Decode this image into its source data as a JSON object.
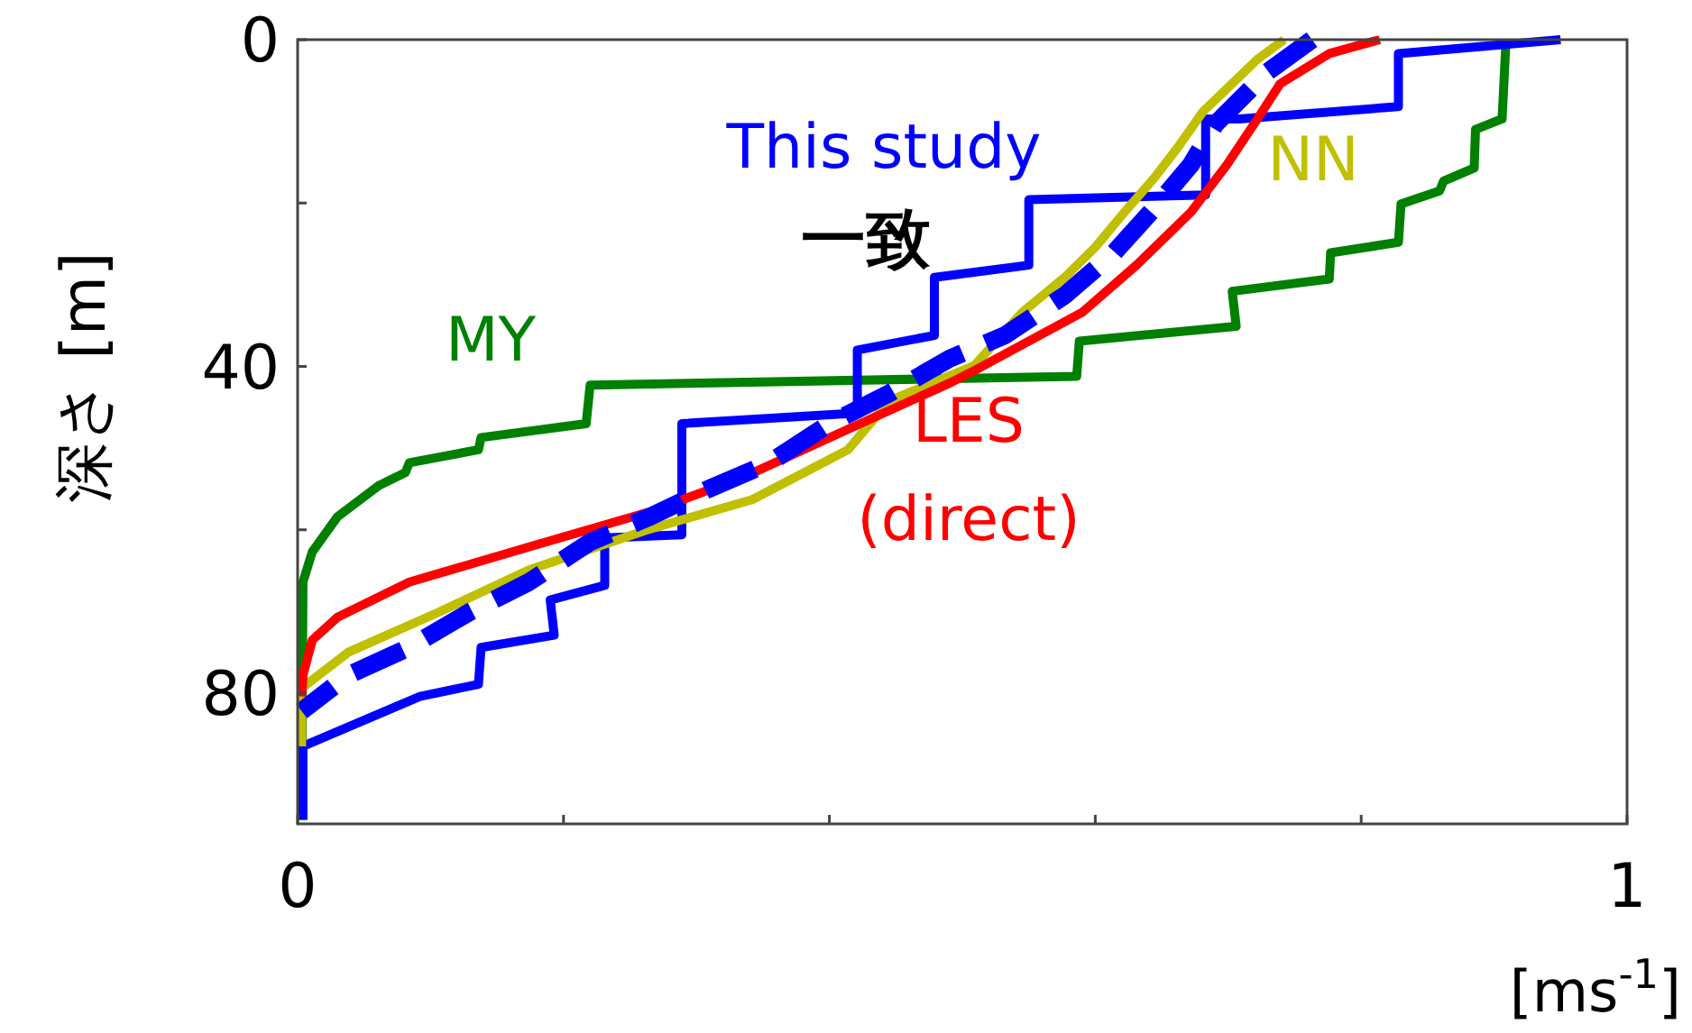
{
  "chart_data": {
    "type": "line",
    "xlabel": "[ms$^{-1}$]",
    "ylabel": "深さ [m]",
    "xlim": [
      0,
      1
    ],
    "ylim": [
      96,
      0
    ],
    "xticks": [
      0,
      {
        "value": 0.2,
        "label": null
      },
      {
        "value": 0.4,
        "label": null
      },
      {
        "value": 0.6,
        "label": null
      },
      {
        "value": 0.8,
        "label": null
      },
      1
    ],
    "yticks": [
      0,
      {
        "value": 20,
        "label": null
      },
      40,
      {
        "value": 60,
        "label": null
      },
      80
    ],
    "grid": false,
    "marker": "none",
    "annotations": [
      "一致"
    ],
    "series": [
      {
        "name": "MY",
        "color": "#008000",
        "line_style": "solid",
        "x": [
          0.909,
          0.906,
          0.886,
          0.885,
          0.862,
          0.859,
          0.83,
          0.828,
          0.777,
          0.776,
          0.703,
          0.706,
          0.588,
          0.586,
          0.22,
          0.217,
          0.138,
          0.136,
          0.084,
          0.081,
          0.061,
          0.03,
          0.011,
          0.004,
          0.003
        ],
        "values": [
          0,
          9.7,
          11,
          15.7,
          17.3,
          18.5,
          20.1,
          24.8,
          26.1,
          29.3,
          30.8,
          35.1,
          36.9,
          41.2,
          42.3,
          47,
          48.7,
          50.2,
          51.8,
          53,
          54.6,
          58.4,
          62.7,
          66.4,
          95.5
        ]
      },
      {
        "name": "This study",
        "color": "#0000ff",
        "line_style": "solid",
        "x": [
          0.95,
          0.828,
          0.828,
          0.708,
          0.683,
          0.683,
          0.55,
          0.55,
          0.479,
          0.479,
          0.421,
          0.421,
          0.289,
          0.289,
          0.231,
          0.231,
          0.19,
          0.193,
          0.138,
          0.136,
          0.092,
          0.004,
          0.004
        ],
        "values": [
          0,
          1.7,
          8.2,
          9.7,
          9.7,
          19,
          19.6,
          27.6,
          29.1,
          36.2,
          38,
          45.7,
          47,
          60.6,
          61,
          66.8,
          68.6,
          72.9,
          74.4,
          78.9,
          80.4,
          86.5,
          95.5
        ]
      },
      {
        "name": "NN",
        "color": "#c0c000",
        "line_style": "solid",
        "x": [
          0.742,
          0.722,
          0.699,
          0.681,
          0.662,
          0.645,
          0.622,
          0.6,
          0.577,
          0.545,
          0.509,
          0.445,
          0.414,
          0.342,
          0.265,
          0.174,
          0.106,
          0.038,
          0.003,
          0.003
        ],
        "values": [
          0,
          2.4,
          6,
          8.8,
          13.2,
          16.8,
          21.1,
          25.4,
          29.1,
          33.4,
          39.9,
          44.2,
          50.2,
          56.3,
          59.9,
          64.9,
          70.1,
          75,
          79.4,
          86.5
        ]
      },
      {
        "name": "LES (direct)",
        "color": "#ff0000",
        "line_style": "solid",
        "x": [
          0.814,
          0.776,
          0.739,
          0.722,
          0.699,
          0.672,
          0.631,
          0.59,
          0.509,
          0.491,
          0.418,
          0.336,
          0.265,
          0.174,
          0.084,
          0.03,
          0.011,
          0.004,
          0.003
        ],
        "values": [
          0,
          1.7,
          5.4,
          9.7,
          15.3,
          21.1,
          27.6,
          33.4,
          40.5,
          42,
          47.4,
          53.5,
          57.8,
          62.1,
          66.4,
          70.7,
          73.5,
          77.8,
          80.4
        ]
      },
      {
        "color": "#0000ff",
        "line_style": "dashed",
        "x": [
          0.763,
          0.73,
          0.69,
          0.672,
          0.645,
          0.614,
          0.577,
          0.532,
          0.491,
          0.445,
          0.4,
          0.355,
          0.309,
          0.265,
          0.22,
          0.174,
          0.129,
          0.084,
          0.038,
          0.003
        ],
        "values": [
          0,
          3.9,
          10.4,
          15.3,
          20.5,
          26.1,
          31.3,
          36.2,
          39,
          43.3,
          47,
          51.8,
          55,
          58.4,
          61.5,
          66.4,
          70.1,
          74.4,
          77.8,
          82.2
        ]
      }
    ]
  }
}
